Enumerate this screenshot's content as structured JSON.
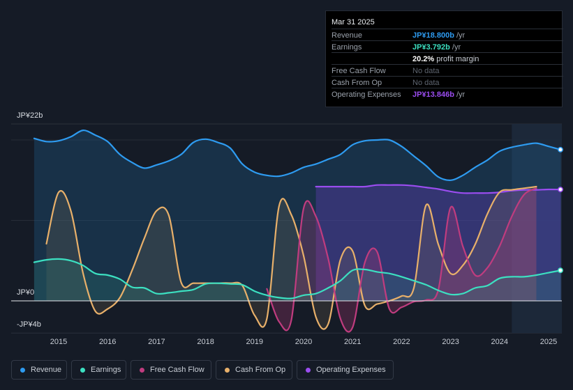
{
  "chart_data": {
    "type": "area",
    "title": "",
    "xlabel": "",
    "ylabel": "",
    "ylim": [
      -4,
      22
    ],
    "y_axis_labels": [
      "JP¥22b",
      "JP¥0",
      "-JP¥4b"
    ],
    "x_ticks": [
      2015,
      2016,
      2017,
      2018,
      2019,
      2020,
      2021,
      2022,
      2023,
      2024,
      2025
    ],
    "x_tick_labels": [
      "2015",
      "2016",
      "2017",
      "2018",
      "2019",
      "2020",
      "2021",
      "2022",
      "2023",
      "2024",
      "2025"
    ],
    "highlight_start": 2024.25,
    "series": [
      {
        "name": "Revenue",
        "color": "#2e9bf0",
        "x": [
          2014.5,
          2014.75,
          2015.0,
          2015.25,
          2015.5,
          2015.75,
          2016.0,
          2016.25,
          2016.5,
          2016.75,
          2017.0,
          2017.25,
          2017.5,
          2017.75,
          2018.0,
          2018.25,
          2018.5,
          2018.75,
          2019.0,
          2019.25,
          2019.5,
          2019.75,
          2020.0,
          2020.25,
          2020.5,
          2020.75,
          2021.0,
          2021.25,
          2021.5,
          2021.75,
          2022.0,
          2022.25,
          2022.5,
          2022.75,
          2023.0,
          2023.25,
          2023.5,
          2023.75,
          2024.0,
          2024.25,
          2024.5,
          2024.75,
          2025.0,
          2025.25
        ],
        "values": [
          20.2,
          19.8,
          19.9,
          20.4,
          21.2,
          20.6,
          19.8,
          18.2,
          17.2,
          16.5,
          16.9,
          17.4,
          18.2,
          19.7,
          20.1,
          19.7,
          19.0,
          17.0,
          16.0,
          15.6,
          15.5,
          15.9,
          16.6,
          17.0,
          17.6,
          18.2,
          19.4,
          19.9,
          20.0,
          20.0,
          19.2,
          18.0,
          16.8,
          15.4,
          15.0,
          15.6,
          16.6,
          17.5,
          18.6,
          19.1,
          19.4,
          19.6,
          19.2,
          18.8
        ]
      },
      {
        "name": "Earnings",
        "color": "#3ce0c1",
        "x": [
          2014.5,
          2014.75,
          2015.0,
          2015.25,
          2015.5,
          2015.75,
          2016.0,
          2016.25,
          2016.5,
          2016.75,
          2017.0,
          2017.25,
          2017.5,
          2017.75,
          2018.0,
          2018.25,
          2018.5,
          2018.75,
          2019.0,
          2019.25,
          2019.5,
          2019.75,
          2020.0,
          2020.25,
          2020.5,
          2020.75,
          2021.0,
          2021.25,
          2021.5,
          2021.75,
          2022.0,
          2022.25,
          2022.5,
          2022.75,
          2023.0,
          2023.25,
          2023.5,
          2023.75,
          2024.0,
          2024.25,
          2024.5,
          2024.75,
          2025.0,
          2025.25
        ],
        "values": [
          4.8,
          5.1,
          5.2,
          5.0,
          4.4,
          3.4,
          3.2,
          2.7,
          1.7,
          1.6,
          0.9,
          1.0,
          1.2,
          1.4,
          2.1,
          2.2,
          2.1,
          2.0,
          1.2,
          0.7,
          0.4,
          0.3,
          0.7,
          0.9,
          1.6,
          2.5,
          3.8,
          3.9,
          3.6,
          3.4,
          3.0,
          2.5,
          2.0,
          1.3,
          0.8,
          0.9,
          1.6,
          1.9,
          2.8,
          3.0,
          3.0,
          3.2,
          3.5,
          3.792
        ]
      },
      {
        "name": "Free Cash Flow",
        "color": "#c03c7f",
        "x": [
          2019.25,
          2019.5,
          2019.75,
          2020.0,
          2020.25,
          2020.5,
          2020.75,
          2021.0,
          2021.25,
          2021.5,
          2021.75,
          2022.0,
          2022.25,
          2022.5,
          2022.75,
          2023.0,
          2023.25,
          2023.5,
          2023.75,
          2024.0,
          2024.25,
          2024.5,
          2024.75
        ],
        "values": [
          1.5,
          -2.6,
          -2.4,
          11.5,
          10.5,
          5.3,
          -2.2,
          -3.3,
          4.8,
          6.1,
          -1.0,
          -0.8,
          -0.1,
          0.1,
          1.4,
          11.6,
          6.8,
          3.2,
          4.1,
          6.8,
          10.5,
          13.2,
          14.0
        ]
      },
      {
        "name": "Cash From Op",
        "color": "#e8b06a",
        "x": [
          2014.75,
          2015.0,
          2015.25,
          2015.5,
          2015.75,
          2016.0,
          2016.25,
          2016.5,
          2016.75,
          2017.0,
          2017.25,
          2017.5,
          2017.75,
          2018.0,
          2018.25,
          2018.5,
          2018.75,
          2019.0,
          2019.25,
          2019.5,
          2019.75,
          2020.0,
          2020.25,
          2020.5,
          2020.75,
          2021.0,
          2021.25,
          2021.5,
          2021.75,
          2022.0,
          2022.25,
          2022.5,
          2022.75,
          2023.0,
          2023.25,
          2023.5,
          2023.75,
          2024.0,
          2024.25,
          2024.5,
          2024.75
        ],
        "values": [
          7.1,
          13.5,
          11.2,
          3.4,
          -1.3,
          -1.0,
          0.4,
          3.8,
          7.8,
          11.2,
          10.6,
          2.3,
          2.2,
          2.2,
          2.2,
          2.2,
          1.9,
          -1.8,
          -2.2,
          11.8,
          10.7,
          5.6,
          -2.0,
          -2.9,
          5.1,
          6.2,
          -0.6,
          -0.4,
          0.0,
          0.6,
          1.6,
          11.9,
          7.0,
          3.4,
          4.4,
          7.0,
          10.8,
          13.5,
          13.8,
          14.0,
          14.2
        ]
      },
      {
        "name": "Operating Expenses",
        "color": "#9b4df0",
        "x": [
          2020.25,
          2020.5,
          2020.75,
          2021.0,
          2021.25,
          2021.5,
          2021.75,
          2022.0,
          2022.25,
          2022.5,
          2022.75,
          2023.0,
          2023.25,
          2023.5,
          2023.75,
          2024.0,
          2024.25,
          2024.5,
          2024.75,
          2025.0,
          2025.25
        ],
        "values": [
          14.2,
          14.2,
          14.2,
          14.2,
          14.2,
          14.4,
          14.4,
          14.4,
          14.3,
          14.1,
          13.9,
          13.6,
          13.4,
          13.4,
          13.4,
          13.5,
          13.7,
          13.8,
          13.8,
          13.85,
          13.846
        ]
      }
    ]
  },
  "tooltip": {
    "date": "Mar 31 2025",
    "rows": [
      {
        "label": "Revenue",
        "value": "JP¥18.800b",
        "unit": " /yr",
        "color": "#2e9bf0"
      },
      {
        "label": "Earnings",
        "value": "JP¥3.792b",
        "unit": " /yr",
        "color": "#3ce0c1"
      },
      {
        "label": "",
        "value": "20.2%",
        "unit": " profit margin",
        "color": "#ffffff"
      },
      {
        "label": "Free Cash Flow",
        "value": "No data",
        "unit": "",
        "color": "#5e6570"
      },
      {
        "label": "Cash From Op",
        "value": "No data",
        "unit": "",
        "color": "#5e6570"
      },
      {
        "label": "Operating Expenses",
        "value": "JP¥13.846b",
        "unit": " /yr",
        "color": "#9b4df0"
      }
    ]
  },
  "legend": [
    {
      "label": "Revenue",
      "color": "#2e9bf0"
    },
    {
      "label": "Earnings",
      "color": "#3ce0c1"
    },
    {
      "label": "Free Cash Flow",
      "color": "#c03c7f"
    },
    {
      "label": "Cash From Op",
      "color": "#e8b06a"
    },
    {
      "label": "Operating Expenses",
      "color": "#9b4df0"
    }
  ]
}
